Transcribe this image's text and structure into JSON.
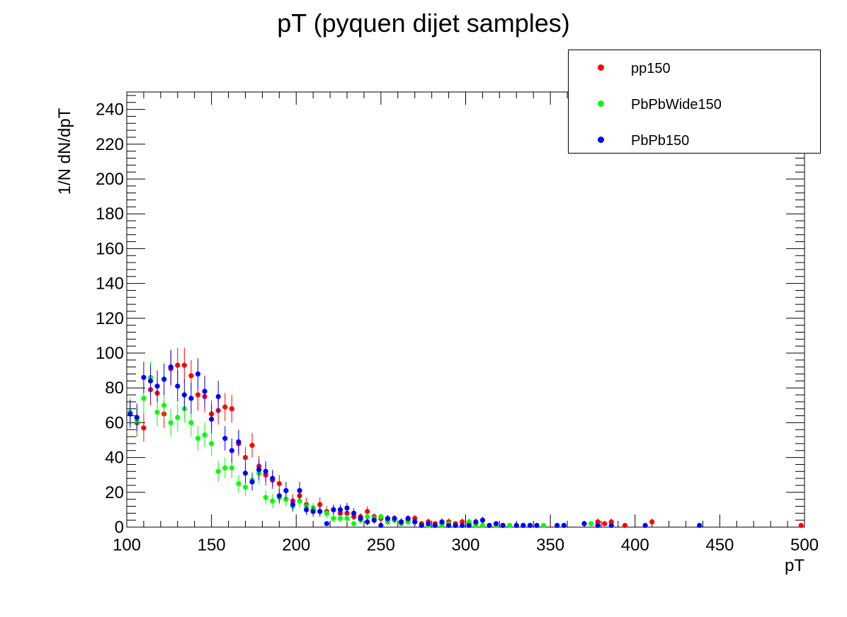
{
  "chart_data": {
    "type": "scatter",
    "title": "pT (pyquen dijet samples)",
    "xlabel": "pT",
    "ylabel": "1/N dN/dpT",
    "xlim": [
      100,
      500
    ],
    "ylim": [
      0,
      250
    ],
    "x_ticks": [
      "100",
      "150",
      "200",
      "250",
      "300",
      "350",
      "400",
      "450",
      "500"
    ],
    "y_ticks": [
      "0",
      "20",
      "40",
      "60",
      "80",
      "100",
      "120",
      "140",
      "160",
      "180",
      "200",
      "220",
      "240"
    ],
    "legend_position": "top-right",
    "series": [
      {
        "name": "pp150",
        "color": "#ff0000",
        "x": [
          102,
          106,
          110,
          114,
          118,
          122,
          126,
          130,
          134,
          138,
          142,
          146,
          150,
          154,
          158,
          162,
          166,
          170,
          174,
          178,
          182,
          186,
          190,
          194,
          198,
          202,
          206,
          210,
          214,
          218,
          222,
          226,
          230,
          234,
          238,
          242,
          246,
          250,
          254,
          258,
          262,
          266,
          270,
          274,
          278,
          282,
          286,
          290,
          294,
          298,
          302,
          306,
          310,
          314,
          318,
          322,
          326,
          330,
          334,
          338,
          342,
          354,
          370,
          378,
          382,
          386,
          394,
          410,
          498
        ],
        "y": [
          66,
          60,
          57,
          79,
          77,
          65,
          91,
          93,
          93,
          87,
          76,
          75,
          65,
          67,
          69,
          68,
          48,
          40,
          47,
          35,
          30,
          27,
          25,
          16,
          15,
          18,
          13,
          10,
          13,
          9,
          10,
          8,
          8,
          6,
          6,
          9,
          6,
          5,
          4,
          4,
          3,
          4,
          5,
          2,
          3,
          2,
          2,
          3,
          2,
          3,
          2,
          2,
          1,
          1,
          2,
          1,
          1,
          1,
          1,
          1,
          1,
          1,
          2,
          3,
          2,
          3,
          1,
          3,
          1
        ],
        "err": [
          7,
          8,
          8,
          9,
          9,
          8,
          10,
          10,
          10,
          9,
          9,
          9,
          8,
          8,
          8,
          8,
          7,
          6,
          7,
          6,
          6,
          5,
          5,
          4,
          4,
          4,
          4,
          3,
          4,
          3,
          3,
          3,
          3,
          2,
          2,
          3,
          2,
          2,
          2,
          2,
          2,
          2,
          2,
          1,
          2,
          1,
          1,
          2,
          1,
          2,
          1,
          1,
          1,
          1,
          1,
          1,
          1,
          1,
          1,
          1,
          1,
          1,
          1,
          2,
          1,
          2,
          1,
          2,
          1
        ]
      },
      {
        "name": "PbPbWide150",
        "color": "#00ff00",
        "x": [
          102,
          106,
          110,
          114,
          118,
          122,
          126,
          130,
          134,
          138,
          142,
          146,
          150,
          154,
          158,
          162,
          166,
          170,
          174,
          178,
          182,
          186,
          190,
          194,
          198,
          202,
          206,
          210,
          214,
          218,
          222,
          226,
          230,
          234,
          238,
          242,
          246,
          250,
          254,
          258,
          262,
          266,
          270,
          274,
          278,
          282,
          286,
          290,
          294,
          298,
          302,
          306,
          310,
          314,
          318,
          322,
          326,
          330,
          334,
          338,
          342,
          346,
          374
        ],
        "y": [
          66,
          61,
          74,
          86,
          66,
          70,
          60,
          63,
          68,
          60,
          51,
          53,
          48,
          32,
          34,
          34,
          25,
          23,
          27,
          31,
          17,
          15,
          17,
          16,
          12,
          15,
          12,
          11,
          9,
          8,
          5,
          5,
          5,
          2,
          4,
          6,
          5,
          6,
          3,
          4,
          2,
          3,
          3,
          1,
          1,
          1,
          1,
          2,
          1,
          1,
          3,
          1,
          1,
          1,
          1,
          1,
          1,
          1,
          1,
          1,
          1,
          1,
          2
        ],
        "err": [
          8,
          8,
          9,
          9,
          8,
          8,
          8,
          8,
          8,
          8,
          7,
          7,
          7,
          6,
          6,
          6,
          5,
          5,
          5,
          6,
          4,
          4,
          4,
          4,
          3,
          4,
          3,
          3,
          3,
          3,
          2,
          2,
          2,
          1,
          2,
          2,
          2,
          2,
          2,
          2,
          1,
          2,
          2,
          1,
          1,
          1,
          1,
          1,
          1,
          1,
          2,
          1,
          1,
          1,
          1,
          1,
          1,
          1,
          1,
          1,
          1,
          1,
          1
        ]
      },
      {
        "name": "PbPb150",
        "color": "#0000ff",
        "x": [
          102,
          106,
          110,
          114,
          118,
          122,
          126,
          130,
          134,
          138,
          142,
          146,
          150,
          154,
          158,
          162,
          166,
          170,
          174,
          178,
          182,
          186,
          190,
          194,
          198,
          202,
          206,
          210,
          214,
          218,
          222,
          226,
          230,
          234,
          238,
          242,
          246,
          250,
          254,
          258,
          262,
          266,
          270,
          274,
          278,
          282,
          286,
          290,
          294,
          298,
          302,
          306,
          310,
          314,
          318,
          322,
          330,
          334,
          338,
          342,
          354,
          358,
          370,
          378,
          386,
          406,
          438
        ],
        "y": [
          65,
          63,
          86,
          84,
          81,
          85,
          92,
          81,
          76,
          74,
          88,
          78,
          62,
          75,
          51,
          44,
          49,
          31,
          26,
          33,
          32,
          28,
          18,
          21,
          13,
          21,
          10,
          9,
          9,
          2,
          10,
          10,
          11,
          8,
          5,
          3,
          4,
          1,
          5,
          5,
          3,
          5,
          3,
          1,
          2,
          1,
          3,
          1,
          1,
          1,
          1,
          3,
          4,
          1,
          2,
          1,
          1,
          1,
          1,
          1,
          1,
          1,
          2,
          1,
          1,
          1,
          1
        ],
        "err": [
          8,
          8,
          9,
          9,
          9,
          9,
          10,
          9,
          9,
          9,
          9,
          9,
          8,
          9,
          7,
          7,
          7,
          6,
          5,
          6,
          6,
          5,
          4,
          5,
          4,
          5,
          3,
          3,
          3,
          1,
          3,
          3,
          3,
          3,
          2,
          2,
          2,
          1,
          2,
          2,
          2,
          2,
          2,
          1,
          1,
          1,
          2,
          1,
          1,
          1,
          1,
          2,
          2,
          1,
          1,
          1,
          1,
          1,
          1,
          1,
          1,
          1,
          1,
          1,
          1,
          1,
          1
        ]
      }
    ]
  }
}
